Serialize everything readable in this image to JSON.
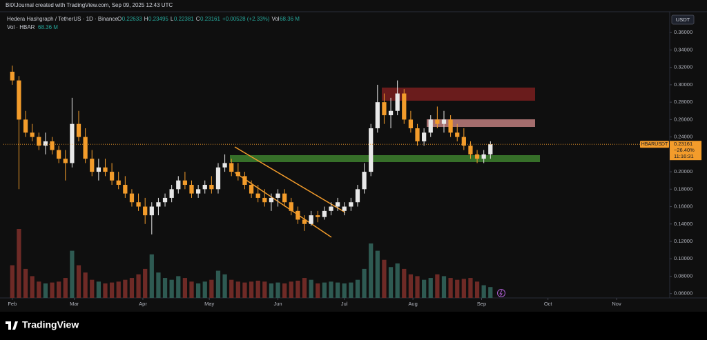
{
  "header": {
    "credit": "BitXJournal created with TradingView.com, Sep 09, 2025 12:43 UTC"
  },
  "footer": {
    "logo": "TradingView"
  },
  "chart_data": {
    "type": "candlestick",
    "title": "Hedera Hashgraph / TetherUS · 1D · Binance",
    "ohlc_legend": [
      "O",
      "0.22633",
      "H",
      "0.23495",
      "L",
      "0.22381",
      "C",
      "0.23161",
      "+0.00528 (+2.33%)",
      "Vol",
      "68.36 M"
    ],
    "volume_legend": [
      "Vol · HBAR",
      "68.36 M"
    ],
    "currency": "USDT",
    "last_price": {
      "symbol": "HBARUSDT",
      "value": 0.23161,
      "label": "0.23161",
      "change": "−26.40%",
      "countdown": "11:16:31"
    },
    "up_color": "#e8e8e8",
    "down_color": "#f39c2b",
    "volume_up_color": "#2e5a52",
    "volume_down_color": "#6e2a26",
    "ylim": [
      0.055,
      0.38
    ],
    "yticks": [
      {
        "value": 0.06,
        "label": "0.06000"
      },
      {
        "value": 0.08,
        "label": "0.08000"
      },
      {
        "value": 0.1,
        "label": "0.10000"
      },
      {
        "value": 0.12,
        "label": "0.12000"
      },
      {
        "value": 0.14,
        "label": "0.14000"
      },
      {
        "value": 0.16,
        "label": "0.16000"
      },
      {
        "value": 0.18,
        "label": "0.18000"
      },
      {
        "value": 0.2,
        "label": "0.20000"
      },
      {
        "value": 0.22,
        "label": "0.22000"
      },
      {
        "value": 0.24,
        "label": "0.24000"
      },
      {
        "value": 0.26,
        "label": "0.26000"
      },
      {
        "value": 0.28,
        "label": "0.28000"
      },
      {
        "value": 0.3,
        "label": "0.30000"
      },
      {
        "value": 0.32,
        "label": "0.32000"
      },
      {
        "value": 0.34,
        "label": "0.34000"
      },
      {
        "value": 0.36,
        "label": "0.36000"
      }
    ],
    "xlim": [
      -4,
      297
    ],
    "xticks": [
      {
        "value": 0,
        "label": "Feb"
      },
      {
        "value": 28,
        "label": "Mar"
      },
      {
        "value": 59,
        "label": "Apr"
      },
      {
        "value": 89,
        "label": "May"
      },
      {
        "value": 120,
        "label": "Jun"
      },
      {
        "value": 150,
        "label": "Jul"
      },
      {
        "value": 181,
        "label": "Aug"
      },
      {
        "value": 212,
        "label": "Sep"
      },
      {
        "value": 242,
        "label": "Oct"
      },
      {
        "value": 273,
        "label": "Nov"
      }
    ],
    "x": [
      0,
      3,
      6,
      9,
      12,
      15,
      18,
      21,
      24,
      27,
      30,
      33,
      36,
      39,
      42,
      45,
      48,
      51,
      54,
      57,
      60,
      63,
      66,
      69,
      72,
      75,
      78,
      81,
      84,
      87,
      90,
      93,
      96,
      99,
      102,
      105,
      108,
      111,
      114,
      117,
      120,
      123,
      126,
      129,
      132,
      135,
      138,
      141,
      144,
      147,
      150,
      153,
      156,
      159,
      162,
      165,
      168,
      171,
      174,
      177,
      180,
      183,
      186,
      189,
      192,
      195,
      198,
      201,
      204,
      207,
      210,
      213,
      216
    ],
    "open": [
      0.315,
      0.305,
      0.26,
      0.245,
      0.24,
      0.23,
      0.235,
      0.225,
      0.215,
      0.21,
      0.255,
      0.24,
      0.215,
      0.2,
      0.205,
      0.2,
      0.19,
      0.185,
      0.175,
      0.165,
      0.16,
      0.15,
      0.16,
      0.165,
      0.17,
      0.18,
      0.19,
      0.185,
      0.175,
      0.18,
      0.185,
      0.18,
      0.205,
      0.21,
      0.2,
      0.195,
      0.185,
      0.175,
      0.17,
      0.165,
      0.17,
      0.175,
      0.165,
      0.155,
      0.145,
      0.14,
      0.15,
      0.148,
      0.155,
      0.16,
      0.155,
      0.16,
      0.165,
      0.18,
      0.2,
      0.25,
      0.28,
      0.265,
      0.27,
      0.29,
      0.26,
      0.25,
      0.235,
      0.245,
      0.26,
      0.255,
      0.26,
      0.245,
      0.24,
      0.23,
      0.22,
      0.215,
      0.22
    ],
    "high": [
      0.322,
      0.31,
      0.27,
      0.255,
      0.245,
      0.245,
      0.24,
      0.23,
      0.225,
      0.285,
      0.27,
      0.25,
      0.225,
      0.215,
      0.215,
      0.21,
      0.2,
      0.195,
      0.18,
      0.175,
      0.17,
      0.165,
      0.17,
      0.175,
      0.185,
      0.195,
      0.2,
      0.19,
      0.185,
      0.19,
      0.195,
      0.21,
      0.22,
      0.215,
      0.21,
      0.2,
      0.19,
      0.185,
      0.18,
      0.175,
      0.18,
      0.18,
      0.17,
      0.16,
      0.15,
      0.155,
      0.155,
      0.16,
      0.165,
      0.17,
      0.165,
      0.17,
      0.185,
      0.21,
      0.255,
      0.3,
      0.29,
      0.285,
      0.305,
      0.295,
      0.27,
      0.255,
      0.25,
      0.265,
      0.275,
      0.27,
      0.265,
      0.255,
      0.25,
      0.235,
      0.225,
      0.225,
      0.235
    ],
    "low": [
      0.3,
      0.18,
      0.24,
      0.235,
      0.225,
      0.22,
      0.22,
      0.21,
      0.19,
      0.205,
      0.235,
      0.21,
      0.195,
      0.19,
      0.195,
      0.185,
      0.18,
      0.17,
      0.16,
      0.155,
      0.14,
      0.128,
      0.15,
      0.16,
      0.165,
      0.175,
      0.18,
      0.17,
      0.17,
      0.175,
      0.175,
      0.175,
      0.2,
      0.195,
      0.19,
      0.18,
      0.17,
      0.165,
      0.16,
      0.155,
      0.16,
      0.16,
      0.15,
      0.14,
      0.132,
      0.138,
      0.142,
      0.145,
      0.15,
      0.155,
      0.15,
      0.155,
      0.16,
      0.175,
      0.195,
      0.245,
      0.255,
      0.25,
      0.265,
      0.255,
      0.245,
      0.23,
      0.23,
      0.24,
      0.25,
      0.245,
      0.24,
      0.235,
      0.225,
      0.215,
      0.21,
      0.21,
      0.215
    ],
    "close": [
      0.305,
      0.26,
      0.245,
      0.24,
      0.23,
      0.235,
      0.225,
      0.215,
      0.21,
      0.255,
      0.24,
      0.215,
      0.2,
      0.205,
      0.2,
      0.19,
      0.185,
      0.175,
      0.165,
      0.16,
      0.15,
      0.16,
      0.165,
      0.17,
      0.18,
      0.19,
      0.185,
      0.175,
      0.18,
      0.185,
      0.18,
      0.205,
      0.21,
      0.2,
      0.195,
      0.185,
      0.175,
      0.17,
      0.165,
      0.17,
      0.175,
      0.165,
      0.155,
      0.145,
      0.14,
      0.15,
      0.148,
      0.155,
      0.16,
      0.165,
      0.16,
      0.165,
      0.18,
      0.2,
      0.25,
      0.28,
      0.265,
      0.27,
      0.29,
      0.26,
      0.25,
      0.235,
      0.245,
      0.26,
      0.255,
      0.26,
      0.245,
      0.24,
      0.23,
      0.22,
      0.215,
      0.22,
      0.2316
    ],
    "volume": [
      180,
      380,
      160,
      120,
      90,
      80,
      85,
      90,
      110,
      260,
      180,
      140,
      100,
      90,
      80,
      85,
      90,
      100,
      110,
      130,
      160,
      240,
      140,
      110,
      100,
      120,
      110,
      90,
      80,
      90,
      100,
      150,
      130,
      100,
      90,
      85,
      90,
      95,
      90,
      80,
      85,
      80,
      90,
      95,
      110,
      100,
      80,
      85,
      90,
      85,
      80,
      85,
      100,
      160,
      300,
      260,
      210,
      170,
      190,
      160,
      130,
      120,
      100,
      110,
      130,
      120,
      110,
      100,
      105,
      110,
      90,
      70,
      60
    ]
  }
}
